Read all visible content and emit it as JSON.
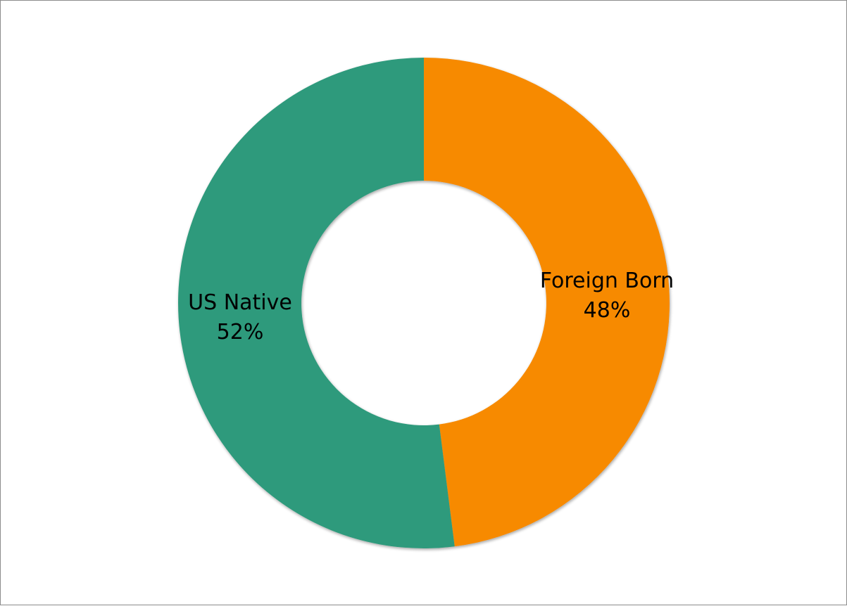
{
  "chart_data": {
    "type": "pie",
    "variant": "donut",
    "legend": "none",
    "slices": [
      {
        "label": "Foreign Born",
        "value": 48,
        "value_label": "48%",
        "color": "#F78A00"
      },
      {
        "label": "US Native",
        "value": 52,
        "value_label": "52%",
        "color": "#2F9A7C"
      }
    ]
  }
}
